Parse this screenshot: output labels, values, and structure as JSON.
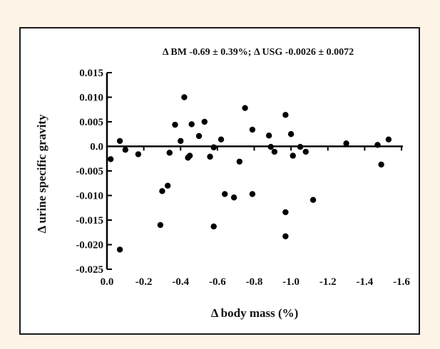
{
  "chart_data": {
    "type": "scatter",
    "title": "",
    "annotation": "Δ  BM -0.69 ± 0.39%; Δ USG -0.0026 ± 0.0072",
    "xlabel": "Δ body mass (%)",
    "ylabel": "Δ urine specific gravity",
    "xlim": [
      0.0,
      -1.6
    ],
    "ylim": [
      -0.025,
      0.015
    ],
    "x_ticks": [
      0.0,
      -0.2,
      -0.4,
      -0.6,
      -0.8,
      -1.0,
      -1.2,
      -1.4,
      -1.6
    ],
    "x_tick_labels": [
      "0.0",
      "-0.2",
      "-0.4",
      "-0.6",
      "-0.8",
      "-1.0",
      "-1.2",
      "-1.4",
      "-1.6"
    ],
    "y_ticks": [
      0.015,
      0.01,
      0.005,
      0.0,
      -0.005,
      -0.01,
      -0.015,
      -0.02,
      -0.025
    ],
    "y_tick_labels": [
      "0.015",
      "0.010",
      "0.005",
      "0.0",
      "-0.005",
      "-0.010",
      "-0.015",
      "-0.020",
      "-0.025"
    ],
    "reference_line_y": 0.0,
    "grid": false,
    "points": [
      {
        "x": -0.02,
        "y": -0.0026
      },
      {
        "x": -0.07,
        "y": 0.0011
      },
      {
        "x": -0.07,
        "y": -0.021
      },
      {
        "x": -0.1,
        "y": -0.0007
      },
      {
        "x": -0.17,
        "y": -0.0016
      },
      {
        "x": -0.29,
        "y": -0.016
      },
      {
        "x": -0.3,
        "y": -0.0091
      },
      {
        "x": -0.33,
        "y": -0.008
      },
      {
        "x": -0.34,
        "y": -0.0013
      },
      {
        "x": -0.37,
        "y": 0.0044
      },
      {
        "x": -0.4,
        "y": 0.0011
      },
      {
        "x": -0.42,
        "y": 0.01
      },
      {
        "x": -0.44,
        "y": -0.0023
      },
      {
        "x": -0.45,
        "y": -0.0019
      },
      {
        "x": -0.46,
        "y": 0.0045
      },
      {
        "x": -0.5,
        "y": 0.0021
      },
      {
        "x": -0.53,
        "y": 0.005
      },
      {
        "x": -0.56,
        "y": -0.0021
      },
      {
        "x": -0.58,
        "y": -0.0002
      },
      {
        "x": -0.58,
        "y": -0.0163
      },
      {
        "x": -0.62,
        "y": 0.0014
      },
      {
        "x": -0.64,
        "y": -0.0097
      },
      {
        "x": -0.69,
        "y": -0.0104
      },
      {
        "x": -0.72,
        "y": -0.0031
      },
      {
        "x": -0.75,
        "y": 0.0078
      },
      {
        "x": -0.79,
        "y": 0.0034
      },
      {
        "x": -0.79,
        "y": -0.0097
      },
      {
        "x": -0.88,
        "y": 0.0022
      },
      {
        "x": -0.89,
        "y": -0.0001
      },
      {
        "x": -0.91,
        "y": -0.0011
      },
      {
        "x": -0.97,
        "y": 0.0064
      },
      {
        "x": -0.97,
        "y": -0.0134
      },
      {
        "x": -0.97,
        "y": -0.0183
      },
      {
        "x": -1.0,
        "y": 0.0025
      },
      {
        "x": -1.01,
        "y": -0.0019
      },
      {
        "x": -1.05,
        "y": -0.0001
      },
      {
        "x": -1.08,
        "y": -0.0011
      },
      {
        "x": -1.12,
        "y": -0.0109
      },
      {
        "x": -1.3,
        "y": 0.0006
      },
      {
        "x": -1.47,
        "y": 0.0003
      },
      {
        "x": -1.49,
        "y": -0.0037
      },
      {
        "x": -1.53,
        "y": 0.0014
      }
    ],
    "marker_color": "#000000"
  }
}
